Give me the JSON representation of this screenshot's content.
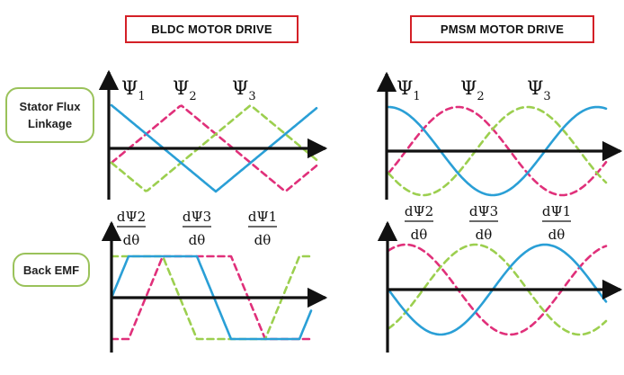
{
  "titles": {
    "bldc": "BLDC  MOTOR DRIVE",
    "pmsm": "PMSM  MOTOR DRIVE"
  },
  "row_labels": {
    "flux_line1": "Stator Flux",
    "flux_line2": "Linkage",
    "emf": "Back EMF"
  },
  "flux_symbols": {
    "base": "Ψ",
    "subs": [
      "1",
      "2",
      "3"
    ]
  },
  "emf_symbols": {
    "numerators": [
      "dΨ2",
      "dΨ3",
      "dΨ1"
    ],
    "denominator": "dθ"
  },
  "colors": {
    "axis": "#111111",
    "phase1": "#2a9fd6",
    "phase2": "#9ccf4f",
    "phase3": "#e0307a",
    "title_border": "#d42027",
    "label_border": "#9ac25a"
  }
}
